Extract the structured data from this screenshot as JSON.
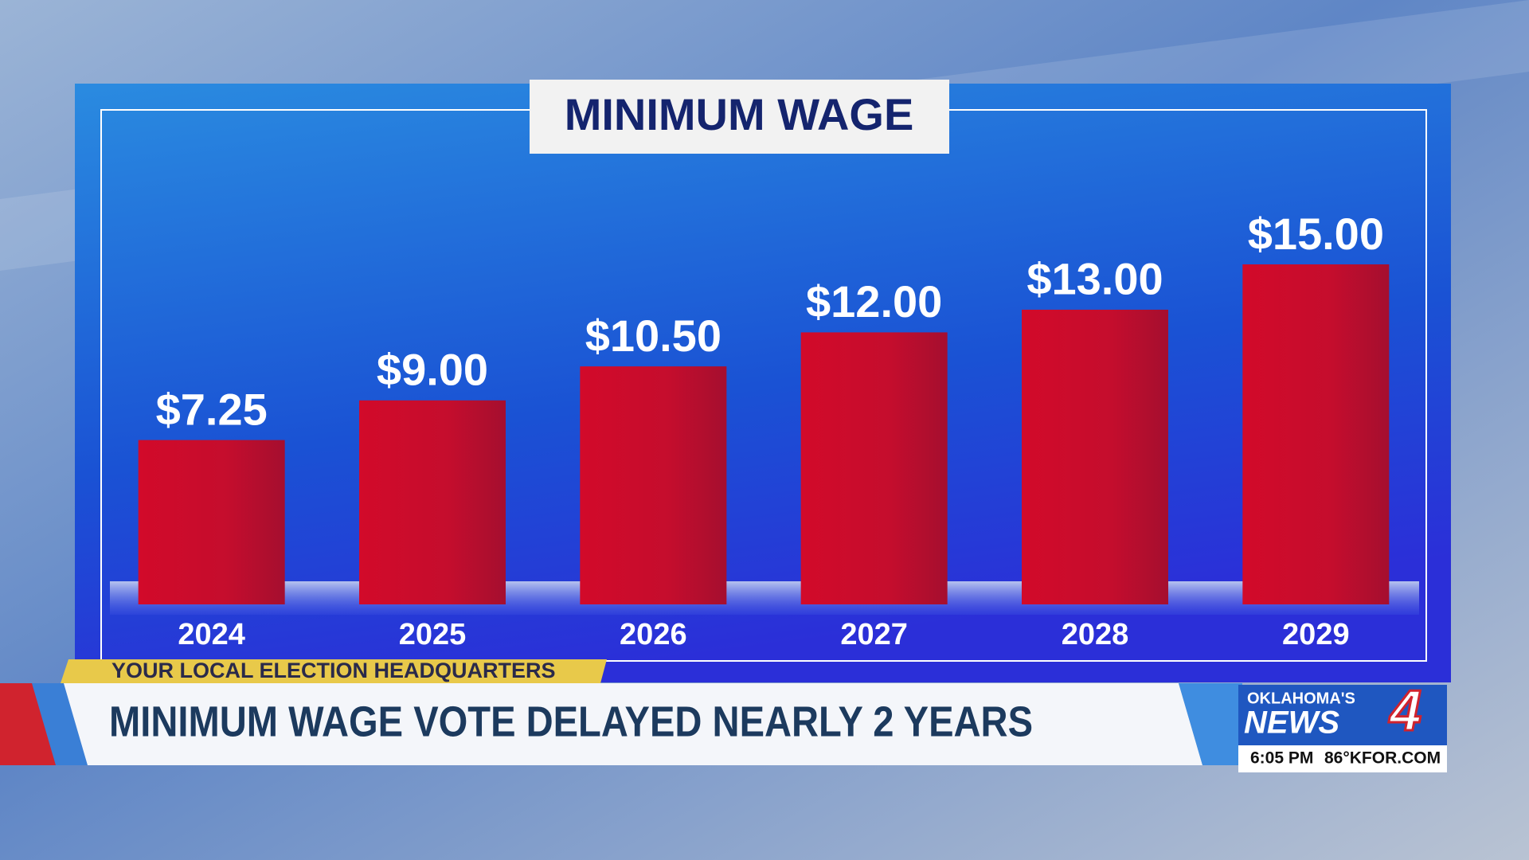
{
  "chart_data": {
    "type": "bar",
    "title": "MINIMUM WAGE",
    "categories": [
      "2024",
      "2025",
      "2026",
      "2027",
      "2028",
      "2029"
    ],
    "values": [
      7.25,
      9.0,
      10.5,
      12.0,
      13.0,
      15.0
    ],
    "value_labels": [
      "$7.25",
      "$9.00",
      "$10.50",
      "$12.00",
      "$13.00",
      "$15.00"
    ],
    "color": "#c8102e"
  },
  "broadcast": {
    "tag": "YOUR LOCAL ELECTION HEADQUARTERS",
    "headline": "MINIMUM WAGE VOTE DELAYED NEARLY 2 YEARS",
    "logo": {
      "top": "OKLAHOMA'S",
      "main": "NEWS",
      "number": "4"
    },
    "time": "6:05 PM",
    "weather": "86°KFOR.COM"
  }
}
